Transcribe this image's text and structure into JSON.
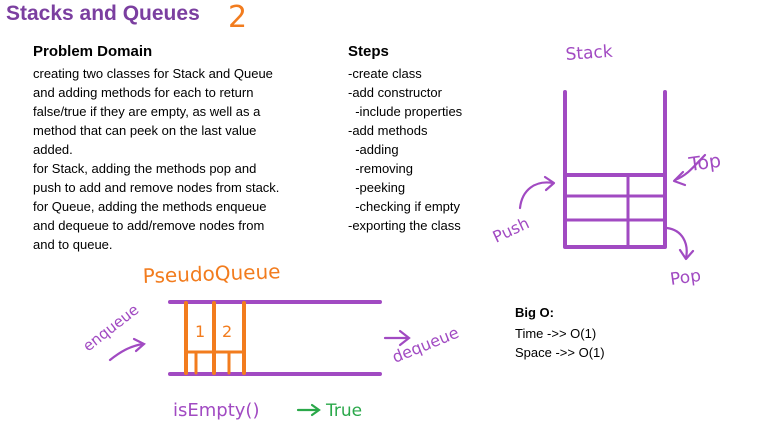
{
  "title": "Stacks and Queues",
  "title_number": "2",
  "problem_domain": {
    "heading": "Problem Domain",
    "lines": [
      "creating two classes for Stack and Queue",
      "and adding methods for each to return",
      "false/true if they are empty, as well as a",
      "method that can peek on the last value",
      "added.",
      "for Stack, adding the methods pop and",
      "push to add and remove nodes from stack.",
      "for Queue, adding the methods enqueue",
      "and dequeue to add/remove nodes from",
      "and to queue."
    ]
  },
  "steps": {
    "heading": "Steps",
    "items": [
      "-create class",
      "-add constructor",
      "  -include properties",
      "-add methods",
      "  -adding",
      "  -removing",
      "  -peeking",
      "  -checking if empty",
      "-exporting the class"
    ]
  },
  "stack_diagram": {
    "label": "Stack",
    "top_label": "Top",
    "push_label": "Push",
    "pop_label": "Pop"
  },
  "queue_diagram": {
    "label": "PseudoQueue",
    "node_values": [
      "1",
      "2"
    ],
    "enqueue_label": "enqueue",
    "dequeue_label": "dequeue",
    "is_empty_label": "isEmpty()",
    "is_empty_result": "True"
  },
  "big_o": {
    "heading": "Big O:",
    "time": "Time ->> O(1)",
    "space": "Space ->> O(1)"
  },
  "colors": {
    "purple": "#a14ac2",
    "orange": "#f27c1e",
    "green": "#2aa84a"
  }
}
